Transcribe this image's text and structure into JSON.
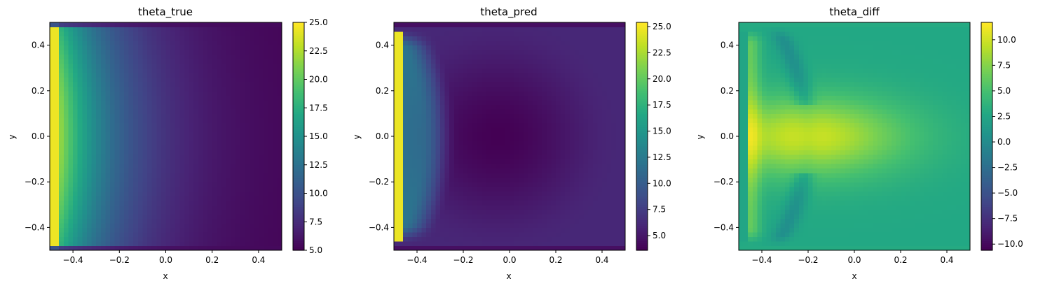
{
  "figure": {
    "panels": [
      {
        "title": "theta_true",
        "xlabel": "x",
        "ylabel": "y"
      },
      {
        "title": "theta_pred",
        "xlabel": "x",
        "ylabel": "y"
      },
      {
        "title": "theta_diff",
        "xlabel": "x",
        "ylabel": "y"
      }
    ]
  },
  "chart_data": [
    {
      "type": "heatmap",
      "title": "theta_true",
      "xlabel": "x",
      "ylabel": "y",
      "xlim": [
        -0.5,
        0.5
      ],
      "ylim": [
        -0.5,
        0.5
      ],
      "xticks": [
        -0.4,
        -0.2,
        0.0,
        0.2,
        0.4
      ],
      "yticks": [
        -0.4,
        -0.2,
        0.0,
        0.2,
        0.4
      ],
      "colormap": "viridis",
      "colorbar": {
        "min": 5.0,
        "max": 25.0,
        "ticks": [
          5.0,
          7.5,
          10.0,
          12.5,
          15.0,
          17.5,
          20.0,
          22.5,
          25.0
        ]
      },
      "value_range": [
        5.0,
        25.0
      ]
    },
    {
      "type": "heatmap",
      "title": "theta_pred",
      "xlabel": "x",
      "ylabel": "y",
      "xlim": [
        -0.5,
        0.5
      ],
      "ylim": [
        -0.5,
        0.5
      ],
      "xticks": [
        -0.4,
        -0.2,
        0.0,
        0.2,
        0.4
      ],
      "yticks": [
        -0.4,
        -0.2,
        0.0,
        0.2,
        0.4
      ],
      "colormap": "viridis",
      "colorbar": {
        "min": 3.6,
        "max": 25.4,
        "ticks": [
          5.0,
          7.5,
          10.0,
          12.5,
          15.0,
          17.5,
          20.0,
          22.5,
          25.0
        ]
      },
      "value_range": [
        3.6,
        25.4
      ]
    },
    {
      "type": "heatmap",
      "title": "theta_diff",
      "xlabel": "x",
      "ylabel": "y",
      "xlim": [
        -0.5,
        0.5
      ],
      "ylim": [
        -0.5,
        0.5
      ],
      "xticks": [
        -0.4,
        -0.2,
        0.0,
        0.2,
        0.4
      ],
      "yticks": [
        -0.4,
        -0.2,
        0.0,
        0.2,
        0.4
      ],
      "colormap": "viridis",
      "colorbar": {
        "min": -10.6,
        "max": 11.7,
        "ticks": [
          -10.0,
          -7.5,
          -5.0,
          -2.5,
          0.0,
          2.5,
          5.0,
          7.5,
          10.0
        ]
      },
      "value_range": [
        -10.6,
        11.7
      ]
    }
  ]
}
